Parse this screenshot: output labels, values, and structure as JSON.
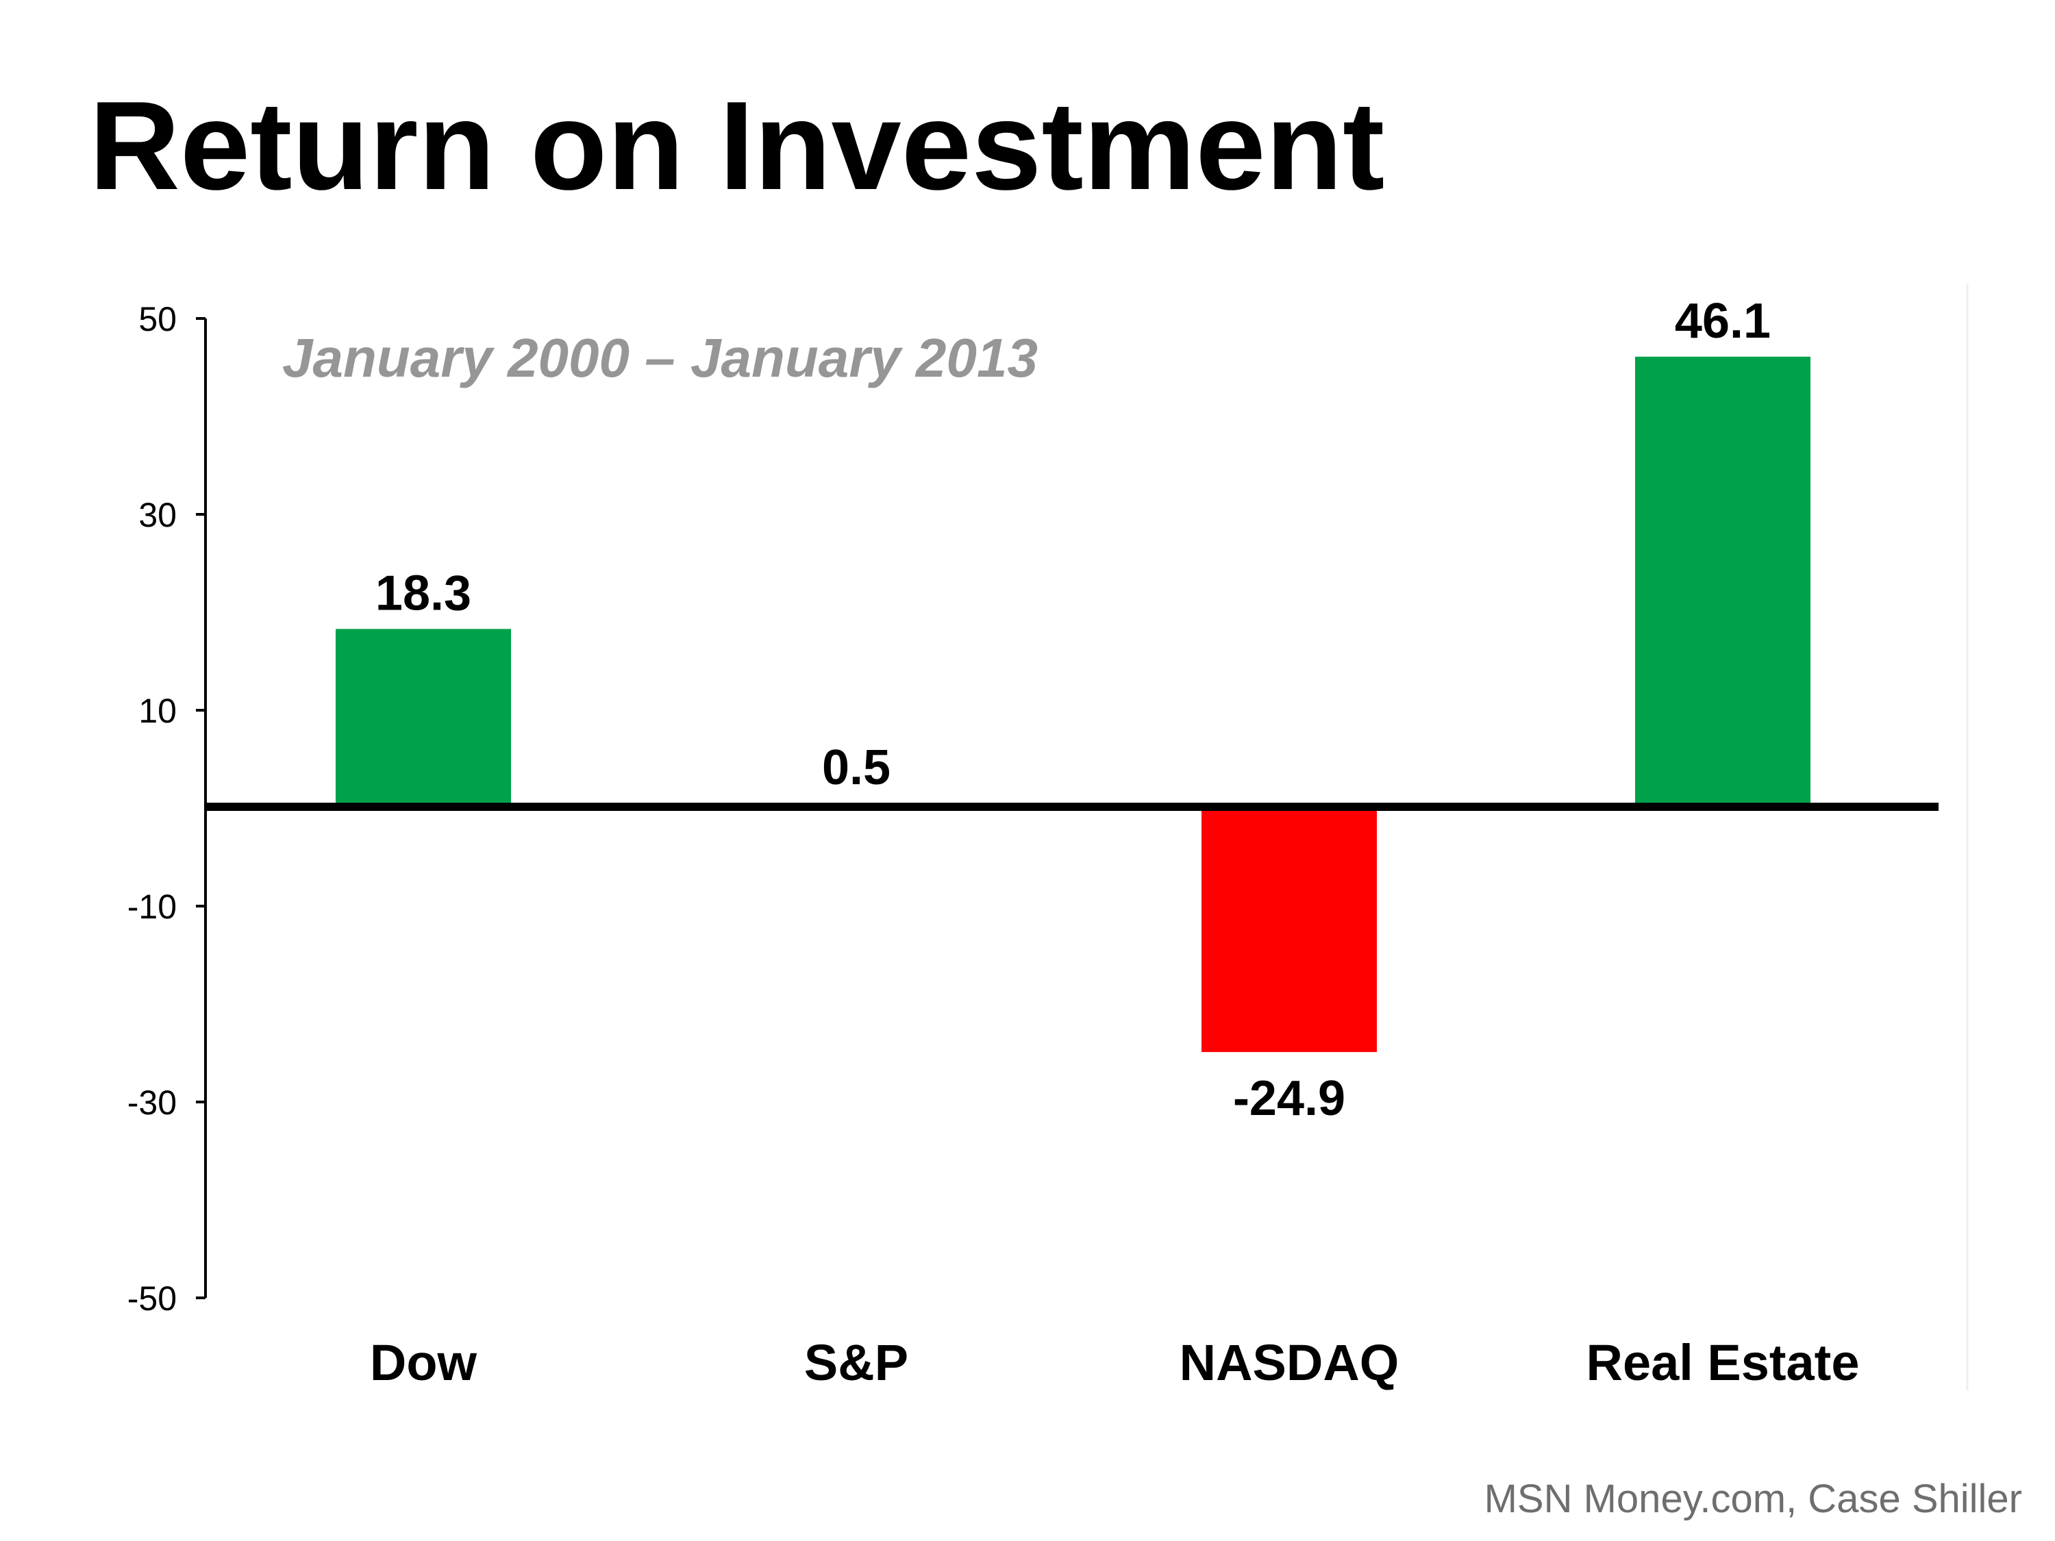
{
  "title": "Return on Investment",
  "source": "MSN Money.com, Case Shiller",
  "chart_data": {
    "type": "bar",
    "subtitle": "January 2000 – January 2013",
    "categories": [
      "Dow",
      "S&P",
      "NASDAQ",
      "Real Estate"
    ],
    "values": [
      18.3,
      0.5,
      -24.9,
      46.1
    ],
    "value_labels": [
      "18.3",
      "0.5",
      "-24.9",
      "46.1"
    ],
    "colors": [
      "#00a14b",
      "#00a14b",
      "#ff0000",
      "#00a14b"
    ],
    "ylim": [
      -50,
      50
    ],
    "yticks": [
      50,
      30,
      10,
      -10,
      -30,
      -50
    ],
    "ytick_labels": [
      "50",
      "30",
      "10",
      "-10",
      "-30",
      "-50"
    ],
    "xlabel": "",
    "ylabel": "",
    "grid": false,
    "legend": "none"
  }
}
